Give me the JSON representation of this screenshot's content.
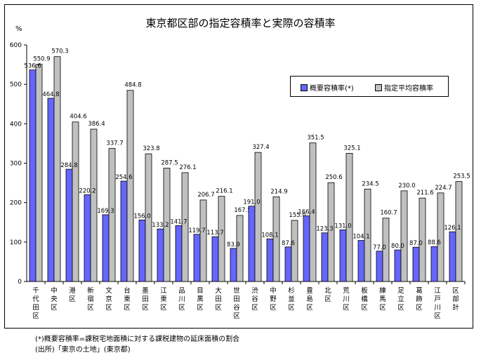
{
  "chart_data": {
    "type": "bar",
    "title": "東京都区部の指定容積率と実際の容積率",
    "ylabel": "%",
    "ylim": [
      0,
      600
    ],
    "yticks": [
      0,
      100,
      200,
      300,
      400,
      500,
      600
    ],
    "grid": false,
    "legend_position": "top-right",
    "categories": [
      "千代田区",
      "中央区",
      "港区",
      "新宿区",
      "文京区",
      "台東区",
      "墨田区",
      "江東区",
      "品川区",
      "目黒区",
      "大田区",
      "世田谷区",
      "渋谷区",
      "中野区",
      "杉並区",
      "豊島区",
      "北区",
      "荒川区",
      "板橋区",
      "練馬区",
      "足立区",
      "葛飾区",
      "江戸川区",
      "区部計"
    ],
    "series": [
      {
        "name": "概要容積率(*)",
        "color": "#6666ff",
        "values": [
          536.6,
          464.8,
          284.8,
          220.2,
          169.3,
          254.6,
          156.0,
          133.2,
          141.7,
          119.7,
          113.7,
          83.9,
          191.0,
          108.1,
          87.6,
          166.4,
          123.3,
          131.0,
          104.1,
          77.0,
          80.0,
          87.0,
          88.6,
          126.1
        ]
      },
      {
        "name": "指定平均容積率",
        "color": "#c0c0c0",
        "values": [
          550.9,
          570.3,
          404.6,
          386.4,
          337.7,
          484.8,
          323.8,
          287.5,
          276.1,
          206.7,
          216.1,
          167.5,
          327.4,
          214.9,
          155.0,
          351.5,
          250.6,
          325.1,
          234.5,
          160.7,
          230.0,
          211.6,
          224.7,
          253.5
        ]
      }
    ]
  },
  "notes": {
    "definition": "(*)概要容積率=課税宅地面積に対する課税建物の延床面積の割合",
    "source": "(出所)「東京の土地」(東京都)"
  }
}
